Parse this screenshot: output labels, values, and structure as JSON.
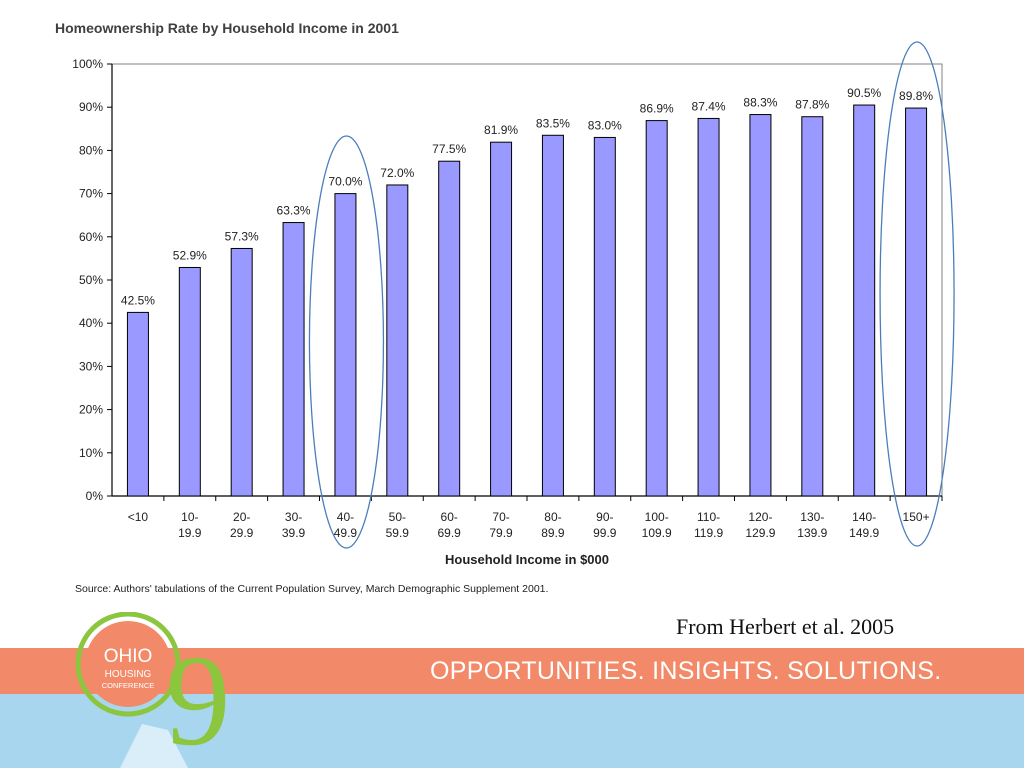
{
  "chart_data": {
    "type": "bar",
    "title": "Homeownership Rate by Household Income in 2001",
    "xlabel": "Household Income in $000",
    "ylabel": "",
    "ylim": [
      0,
      100
    ],
    "y_ticks": [
      "0%",
      "10%",
      "20%",
      "30%",
      "40%",
      "50%",
      "60%",
      "70%",
      "80%",
      "90%",
      "100%"
    ],
    "categories": [
      [
        "<10"
      ],
      [
        "10-",
        "19.9"
      ],
      [
        "20-",
        "29.9"
      ],
      [
        "30-",
        "39.9"
      ],
      [
        "40-",
        "49.9"
      ],
      [
        "50-",
        "59.9"
      ],
      [
        "60-",
        "69.9"
      ],
      [
        "70-",
        "79.9"
      ],
      [
        "80-",
        "89.9"
      ],
      [
        "90-",
        "99.9"
      ],
      [
        "100-",
        "109.9"
      ],
      [
        "110-",
        "119.9"
      ],
      [
        "120-",
        "129.9"
      ],
      [
        "130-",
        "139.9"
      ],
      [
        "140-",
        "149.9"
      ],
      [
        "150+"
      ]
    ],
    "values": [
      42.5,
      52.9,
      57.3,
      63.3,
      70.0,
      72.0,
      77.5,
      81.9,
      83.5,
      83.0,
      86.9,
      87.4,
      88.3,
      87.8,
      90.5,
      89.8
    ],
    "data_labels": [
      "42.5%",
      "52.9%",
      "57.3%",
      "63.3%",
      "70.0%",
      "72.0%",
      "77.5%",
      "81.9%",
      "83.5%",
      "83.0%",
      "86.9%",
      "87.4%",
      "88.3%",
      "87.8%",
      "90.5%",
      "89.8%"
    ],
    "highlighted_categories": [
      4,
      15
    ],
    "grid": false,
    "bar_color": "#9999ff",
    "highlight_color": "#4a7ebb",
    "source": "Source: Authors' tabulations of the Current Population Survey, March Demographic Supplement 2001."
  },
  "citation": "From Herbert et al. 2005",
  "footer": {
    "tagline": "OPPORTUNITIES. INSIGHTS. SOLUTIONS.",
    "logo_text": [
      "OHIO",
      "HOUSING",
      "CONFERENCE"
    ],
    "logo_numeral": "9",
    "colors": {
      "orange": "#f28a6a",
      "blue": "#a8d6ee",
      "logo_green": "#8cc63f"
    }
  }
}
